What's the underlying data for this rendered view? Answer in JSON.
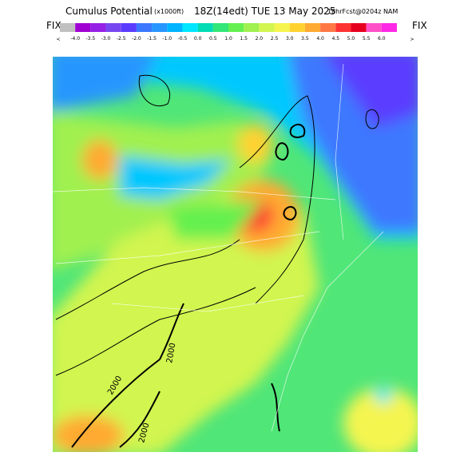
{
  "header": {
    "title": "Cumulus Potential",
    "units": "(x1000ft)",
    "valid": "18Z(14edt) TUE 13 May 2025",
    "forecast": "18hrFcst@0204z NAM",
    "left_tag": "FIX",
    "right_tag": "FIX",
    "left_arrow": "<",
    "right_arrow": ">"
  },
  "legend": {
    "colors": [
      "#c0c0c0",
      "#a000d2",
      "#9620e6",
      "#7846f0",
      "#5a3cff",
      "#3c78ff",
      "#2896ff",
      "#00b4ff",
      "#00e6ff",
      "#00dcb4",
      "#32e678",
      "#64f050",
      "#a0f050",
      "#d2f550",
      "#f5f550",
      "#ffd232",
      "#ffaa32",
      "#ff7846",
      "#ff3232",
      "#e6001e",
      "#ff50c8",
      "#ff28e6"
    ],
    "labels": [
      "-4.0",
      "-3.5",
      "-3.0",
      "-2.5",
      "-2.0",
      "-1.5",
      "-1.0",
      "-0.5",
      "0.0",
      "0.5",
      "1.0",
      "1.5",
      "2.0",
      "2.5",
      "3.0",
      "3.5",
      "4.0",
      "4.5",
      "5.0",
      "5.5",
      "6.0"
    ]
  },
  "map": {
    "contour_labels": [
      "2000",
      "2000",
      "2000"
    ]
  }
}
